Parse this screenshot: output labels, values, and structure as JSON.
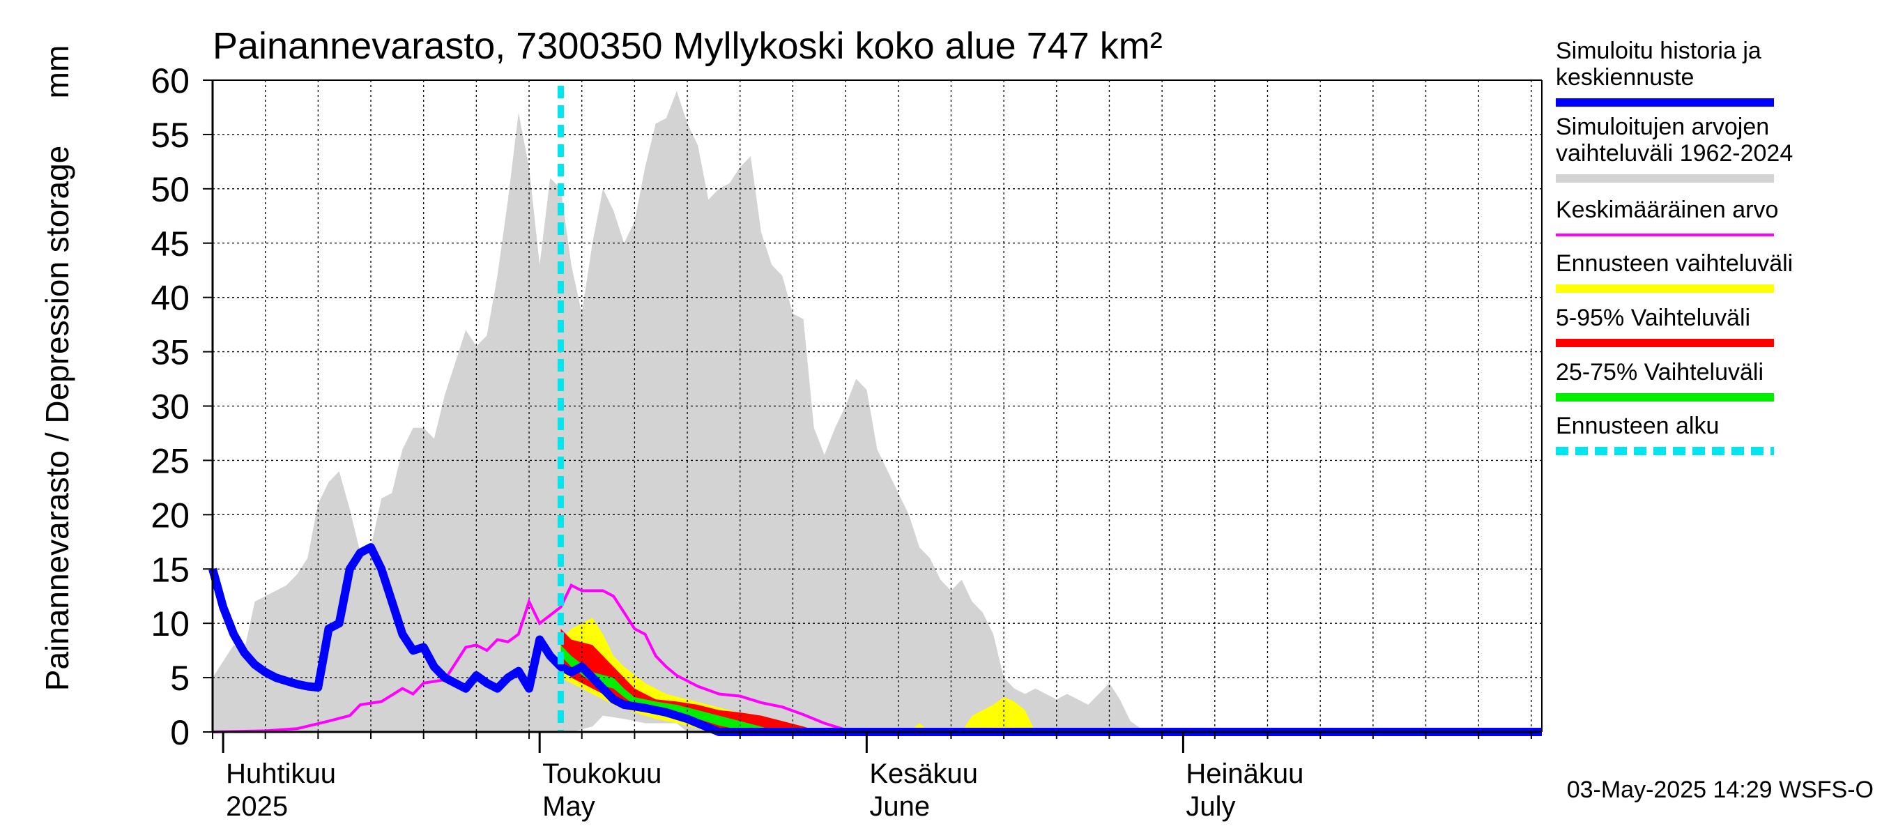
{
  "chart_data": {
    "type": "area",
    "title": "Painannevarasto, 7300350 Myllykoski koko alue 747 km²",
    "ylabel_left": "Painannevarasto / Depression storage",
    "ylabel_unit": "mm",
    "ylim": [
      0,
      60
    ],
    "yticks": [
      "0",
      "5",
      "10",
      "15",
      "20",
      "25",
      "30",
      "35",
      "40",
      "45",
      "50",
      "55",
      "60"
    ],
    "x_start": "2025-03-31",
    "x_end": "2025-08-04",
    "grid": true,
    "month_labels": [
      {
        "line1": "Huhtikuu",
        "line2": "2025",
        "start": "2025-04-01"
      },
      {
        "line1": "Toukokuu",
        "line2": "May",
        "start": "2025-05-01"
      },
      {
        "line1": "Kesäkuu",
        "line2": "June",
        "start": "2025-06-01"
      },
      {
        "line1": "Heinäkuu",
        "line2": "July",
        "start": "2025-07-01"
      }
    ],
    "forecast_start": "2025-05-03",
    "footer": "03-May-2025 14:29 WSFS-O",
    "legend_position": "right",
    "legend": [
      {
        "label_line1": "Simuloitu historia ja",
        "label_line2": "keskiennuste",
        "color": "#0000ff",
        "style": "thick"
      },
      {
        "label_line1": "Simuloitujen arvojen",
        "label_line2": "vaihteluväli 1962-2024",
        "color": "#d3d3d3",
        "style": "band"
      },
      {
        "label_line1": "Keskimääräinen arvo",
        "label_line2": "",
        "color": "#ff00ff",
        "style": "line"
      },
      {
        "label_line1": "Ennusteen vaihteluväli",
        "label_line2": "",
        "color": "#ffff00",
        "style": "band"
      },
      {
        "label_line1": "5-95% Vaihteluväli",
        "label_line2": "",
        "color": "#ff0000",
        "style": "band"
      },
      {
        "label_line1": "25-75% Vaihteluväli",
        "label_line2": "",
        "color": "#00ee00",
        "style": "band"
      },
      {
        "label_line1": "Ennusteen alku",
        "label_line2": "",
        "color": "#00e5ee",
        "style": "dashed"
      }
    ],
    "series": {
      "history_range_upper": [
        [
          "2025-03-31",
          5
        ],
        [
          "2025-04-02",
          8
        ],
        [
          "2025-04-03",
          7.5
        ],
        [
          "2025-04-04",
          12
        ],
        [
          "2025-04-06",
          13
        ],
        [
          "2025-04-07",
          13.5
        ],
        [
          "2025-04-08",
          14.5
        ],
        [
          "2025-04-09",
          16
        ],
        [
          "2025-04-10",
          21
        ],
        [
          "2025-04-11",
          23
        ],
        [
          "2025-04-12",
          24
        ],
        [
          "2025-04-13",
          20.5
        ],
        [
          "2025-04-14",
          16.5
        ],
        [
          "2025-04-15",
          17
        ],
        [
          "2025-04-16",
          21.5
        ],
        [
          "2025-04-17",
          22
        ],
        [
          "2025-04-18",
          26
        ],
        [
          "2025-04-19",
          28
        ],
        [
          "2025-04-20",
          28
        ],
        [
          "2025-04-21",
          27
        ],
        [
          "2025-04-22",
          31
        ],
        [
          "2025-04-23",
          34
        ],
        [
          "2025-04-24",
          37
        ],
        [
          "2025-04-25",
          35.5
        ],
        [
          "2025-04-26",
          36.5
        ],
        [
          "2025-04-27",
          42
        ],
        [
          "2025-04-28",
          49
        ],
        [
          "2025-04-29",
          57
        ],
        [
          "2025-04-30",
          52
        ],
        [
          "2025-05-01",
          43
        ],
        [
          "2025-05-02",
          51
        ],
        [
          "2025-05-03",
          50
        ],
        [
          "2025-05-04",
          43
        ],
        [
          "2025-05-05",
          38.5
        ],
        [
          "2025-05-06",
          45
        ],
        [
          "2025-05-07",
          50
        ],
        [
          "2025-05-08",
          48
        ],
        [
          "2025-05-09",
          45
        ],
        [
          "2025-05-10",
          47
        ],
        [
          "2025-05-11",
          52
        ],
        [
          "2025-05-12",
          56
        ],
        [
          "2025-05-13",
          56.5
        ],
        [
          "2025-05-14",
          59
        ],
        [
          "2025-05-15",
          56
        ],
        [
          "2025-05-16",
          54
        ],
        [
          "2025-05-17",
          49
        ],
        [
          "2025-05-18",
          50
        ],
        [
          "2025-05-19",
          50.5
        ],
        [
          "2025-05-20",
          52
        ],
        [
          "2025-05-21",
          53
        ],
        [
          "2025-05-22",
          46
        ],
        [
          "2025-05-23",
          43
        ],
        [
          "2025-05-24",
          42
        ],
        [
          "2025-05-25",
          38.5
        ],
        [
          "2025-05-26",
          38
        ],
        [
          "2025-05-27",
          28
        ],
        [
          "2025-05-28",
          25.5
        ],
        [
          "2025-05-29",
          28
        ],
        [
          "2025-05-30",
          30
        ],
        [
          "2025-05-31",
          32.5
        ],
        [
          "2025-06-01",
          31.5
        ],
        [
          "2025-06-02",
          26
        ],
        [
          "2025-06-03",
          24
        ],
        [
          "2025-06-04",
          22
        ],
        [
          "2025-06-05",
          20
        ],
        [
          "2025-06-06",
          17
        ],
        [
          "2025-06-07",
          16
        ],
        [
          "2025-06-08",
          14
        ],
        [
          "2025-06-09",
          13
        ],
        [
          "2025-06-10",
          14
        ],
        [
          "2025-06-11",
          12
        ],
        [
          "2025-06-12",
          11
        ],
        [
          "2025-06-13",
          9
        ],
        [
          "2025-06-14",
          5
        ],
        [
          "2025-06-15",
          4
        ],
        [
          "2025-06-16",
          3.5
        ],
        [
          "2025-06-17",
          4
        ],
        [
          "2025-06-18",
          3.5
        ],
        [
          "2025-06-19",
          3
        ],
        [
          "2025-06-20",
          3.5
        ],
        [
          "2025-06-21",
          3
        ],
        [
          "2025-06-22",
          2.5
        ],
        [
          "2025-06-23",
          3.5
        ],
        [
          "2025-06-24",
          4.5
        ],
        [
          "2025-06-25",
          3
        ],
        [
          "2025-06-26",
          1
        ],
        [
          "2025-06-27",
          0.3
        ],
        [
          "2025-06-28",
          0
        ],
        [
          "2025-08-04",
          0
        ]
      ],
      "history_range_lower": [
        [
          "2025-03-31",
          0
        ],
        [
          "2025-05-04",
          0
        ],
        [
          "2025-05-06",
          0.5
        ],
        [
          "2025-05-07",
          1.5
        ],
        [
          "2025-05-09",
          1.2
        ],
        [
          "2025-05-11",
          0.8
        ],
        [
          "2025-05-14",
          0.8
        ],
        [
          "2025-05-15",
          0
        ],
        [
          "2025-08-04",
          0
        ]
      ],
      "forecast_range_upper": [
        [
          "2025-05-03",
          8.5
        ],
        [
          "2025-05-04",
          9.5
        ],
        [
          "2025-05-06",
          10.5
        ],
        [
          "2025-05-07",
          9
        ],
        [
          "2025-05-08",
          7
        ],
        [
          "2025-05-09",
          6
        ],
        [
          "2025-05-11",
          4.5
        ],
        [
          "2025-05-13",
          3.5
        ],
        [
          "2025-05-15",
          3
        ],
        [
          "2025-05-17",
          2.5
        ],
        [
          "2025-05-19",
          2
        ],
        [
          "2025-05-21",
          1.5
        ],
        [
          "2025-05-23",
          1
        ],
        [
          "2025-05-25",
          0.5
        ],
        [
          "2025-05-27",
          0.2
        ],
        [
          "2025-05-28",
          0
        ],
        [
          "2025-06-05",
          0
        ],
        [
          "2025-06-06",
          0.8
        ],
        [
          "2025-06-07",
          0
        ],
        [
          "2025-06-10",
          0
        ],
        [
          "2025-06-11",
          1.5
        ],
        [
          "2025-06-12",
          2
        ],
        [
          "2025-06-13",
          2.5
        ],
        [
          "2025-06-14",
          3.2
        ],
        [
          "2025-06-15",
          2.8
        ],
        [
          "2025-06-16",
          2
        ],
        [
          "2025-06-17",
          0
        ],
        [
          "2025-08-04",
          0
        ]
      ],
      "forecast_range_lower": [
        [
          "2025-05-03",
          5
        ],
        [
          "2025-05-04",
          4.5
        ],
        [
          "2025-05-06",
          3.5
        ],
        [
          "2025-05-08",
          2.5
        ],
        [
          "2025-05-10",
          1.8
        ],
        [
          "2025-05-12",
          1.2
        ],
        [
          "2025-05-14",
          0.8
        ],
        [
          "2025-05-16",
          0.3
        ],
        [
          "2025-05-17",
          0
        ],
        [
          "2025-08-04",
          0
        ]
      ],
      "p05_95_upper": [
        [
          "2025-05-03",
          9.5
        ],
        [
          "2025-05-04",
          8.5
        ],
        [
          "2025-05-06",
          8
        ],
        [
          "2025-05-07",
          7
        ],
        [
          "2025-05-08",
          6
        ],
        [
          "2025-05-09",
          5
        ],
        [
          "2025-05-10",
          4
        ],
        [
          "2025-05-12",
          3
        ],
        [
          "2025-05-14",
          2.8
        ],
        [
          "2025-05-16",
          2.5
        ],
        [
          "2025-05-18",
          2
        ],
        [
          "2025-05-20",
          1.8
        ],
        [
          "2025-05-22",
          1.5
        ],
        [
          "2025-05-24",
          1
        ],
        [
          "2025-05-26",
          0.5
        ],
        [
          "2025-05-27",
          0.2
        ],
        [
          "2025-05-28",
          0
        ]
      ],
      "p05_95_lower": [
        [
          "2025-05-03",
          6
        ],
        [
          "2025-05-04",
          5
        ],
        [
          "2025-05-06",
          4
        ],
        [
          "2025-05-07",
          3.5
        ],
        [
          "2025-05-08",
          3
        ],
        [
          "2025-05-09",
          2.5
        ],
        [
          "2025-05-11",
          2
        ],
        [
          "2025-05-13",
          1.5
        ],
        [
          "2025-05-15",
          1
        ],
        [
          "2025-05-17",
          0.5
        ],
        [
          "2025-05-18",
          0.2
        ],
        [
          "2025-05-19",
          0
        ]
      ],
      "p25_75_upper": [
        [
          "2025-05-03",
          8
        ],
        [
          "2025-05-04",
          7
        ],
        [
          "2025-05-06",
          5.5
        ],
        [
          "2025-05-08",
          5
        ],
        [
          "2025-05-09",
          4
        ],
        [
          "2025-05-10",
          3.2
        ],
        [
          "2025-05-12",
          2.8
        ],
        [
          "2025-05-14",
          2.5
        ],
        [
          "2025-05-16",
          2
        ],
        [
          "2025-05-18",
          1.5
        ],
        [
          "2025-05-20",
          1
        ],
        [
          "2025-05-22",
          0.5
        ],
        [
          "2025-05-23",
          0.2
        ],
        [
          "2025-05-24",
          0
        ]
      ],
      "p25_75_lower": [
        [
          "2025-05-03",
          7
        ],
        [
          "2025-05-04",
          6
        ],
        [
          "2025-05-06",
          4.5
        ],
        [
          "2025-05-08",
          4
        ],
        [
          "2025-05-09",
          3.2
        ],
        [
          "2025-05-10",
          2.5
        ],
        [
          "2025-05-12",
          2.2
        ],
        [
          "2025-05-14",
          1.8
        ],
        [
          "2025-05-16",
          1.2
        ],
        [
          "2025-05-18",
          0.6
        ],
        [
          "2025-05-20",
          0.2
        ],
        [
          "2025-05-21",
          0
        ]
      ],
      "mean": [
        [
          "2025-03-31",
          0
        ],
        [
          "2025-04-05",
          0.1
        ],
        [
          "2025-04-08",
          0.3
        ],
        [
          "2025-04-11",
          1
        ],
        [
          "2025-04-13",
          1.5
        ],
        [
          "2025-04-14",
          2.5
        ],
        [
          "2025-04-16",
          2.8
        ],
        [
          "2025-04-18",
          4
        ],
        [
          "2025-04-19",
          3.5
        ],
        [
          "2025-04-20",
          4.5
        ],
        [
          "2025-04-22",
          4.8
        ],
        [
          "2025-04-24",
          7.8
        ],
        [
          "2025-04-25",
          8
        ],
        [
          "2025-04-26",
          7.5
        ],
        [
          "2025-04-27",
          8.5
        ],
        [
          "2025-04-28",
          8.3
        ],
        [
          "2025-04-29",
          9
        ],
        [
          "2025-04-30",
          12
        ],
        [
          "2025-05-01",
          10
        ],
        [
          "2025-05-03",
          11.5
        ],
        [
          "2025-05-04",
          13.5
        ],
        [
          "2025-05-05",
          13
        ],
        [
          "2025-05-07",
          13
        ],
        [
          "2025-05-08",
          12.5
        ],
        [
          "2025-05-09",
          11
        ],
        [
          "2025-05-10",
          9.5
        ],
        [
          "2025-05-11",
          9
        ],
        [
          "2025-05-12",
          7
        ],
        [
          "2025-05-13",
          6
        ],
        [
          "2025-05-14",
          5.2
        ],
        [
          "2025-05-16",
          4.2
        ],
        [
          "2025-05-18",
          3.5
        ],
        [
          "2025-05-20",
          3.3
        ],
        [
          "2025-05-22",
          2.7
        ],
        [
          "2025-05-24",
          2.3
        ],
        [
          "2025-05-26",
          1.6
        ],
        [
          "2025-05-28",
          0.8
        ],
        [
          "2025-05-30",
          0.2
        ],
        [
          "2025-05-31",
          0
        ],
        [
          "2025-08-04",
          0
        ]
      ],
      "simulated": [
        [
          "2025-03-31",
          15
        ],
        [
          "2025-04-01",
          11.5
        ],
        [
          "2025-04-02",
          9
        ],
        [
          "2025-04-03",
          7.3
        ],
        [
          "2025-04-04",
          6.2
        ],
        [
          "2025-04-05",
          5.5
        ],
        [
          "2025-04-06",
          5
        ],
        [
          "2025-04-07",
          4.7
        ],
        [
          "2025-04-08",
          4.4
        ],
        [
          "2025-04-09",
          4.2
        ],
        [
          "2025-04-10",
          4.1
        ],
        [
          "2025-04-11",
          9.5
        ],
        [
          "2025-04-12",
          10
        ],
        [
          "2025-04-13",
          15
        ],
        [
          "2025-04-14",
          16.5
        ],
        [
          "2025-04-15",
          17
        ],
        [
          "2025-04-16",
          15
        ],
        [
          "2025-04-17",
          12
        ],
        [
          "2025-04-18",
          9
        ],
        [
          "2025-04-19",
          7.5
        ],
        [
          "2025-04-20",
          7.8
        ],
        [
          "2025-04-21",
          6
        ],
        [
          "2025-04-22",
          5
        ],
        [
          "2025-04-23",
          4.5
        ],
        [
          "2025-04-24",
          4
        ],
        [
          "2025-04-25",
          5.2
        ],
        [
          "2025-04-26",
          4.5
        ],
        [
          "2025-04-27",
          4
        ],
        [
          "2025-04-28",
          5
        ],
        [
          "2025-04-29",
          5.6
        ],
        [
          "2025-04-30",
          4
        ],
        [
          "2025-05-01",
          8.5
        ],
        [
          "2025-05-02",
          7
        ],
        [
          "2025-05-03",
          6
        ],
        [
          "2025-05-04",
          5.5
        ],
        [
          "2025-05-05",
          6
        ],
        [
          "2025-05-06",
          5
        ],
        [
          "2025-05-07",
          4
        ],
        [
          "2025-05-08",
          3
        ],
        [
          "2025-05-09",
          2.5
        ],
        [
          "2025-05-11",
          2.2
        ],
        [
          "2025-05-13",
          1.8
        ],
        [
          "2025-05-15",
          1.2
        ],
        [
          "2025-05-17",
          0.4
        ],
        [
          "2025-05-18",
          0
        ],
        [
          "2025-08-04",
          0
        ]
      ]
    }
  }
}
